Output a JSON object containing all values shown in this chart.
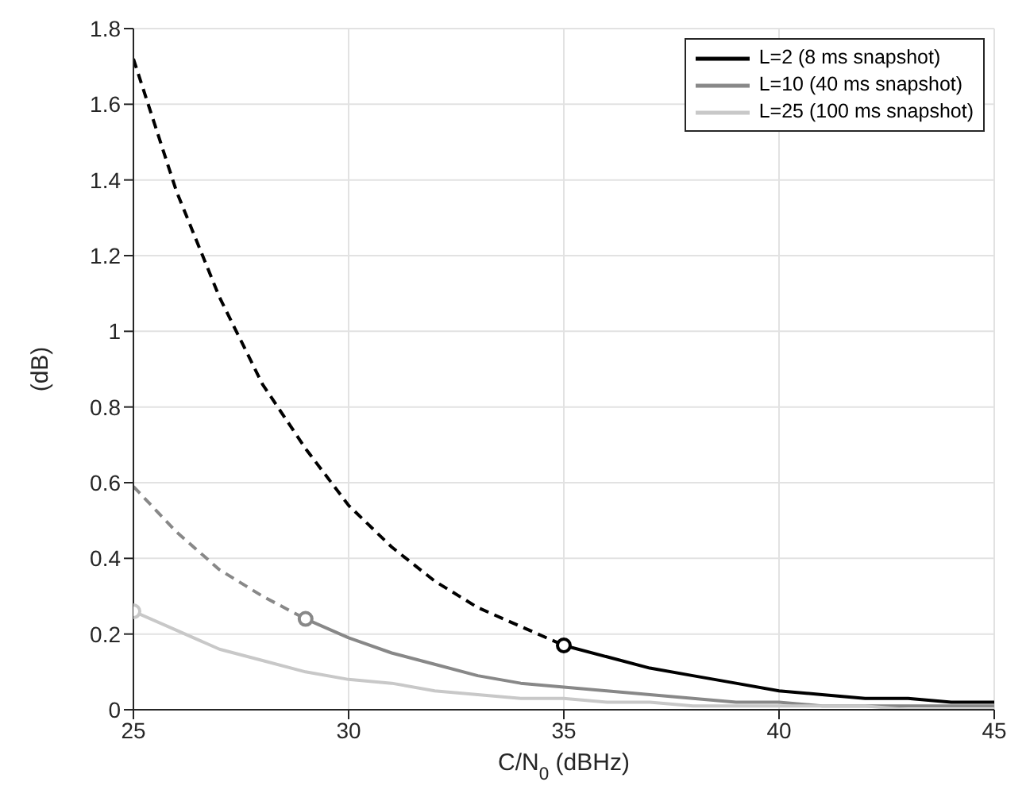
{
  "chart_data": {
    "type": "line",
    "xlabel": "C/N$_{0}$ (dBHz)",
    "ylabel": "(dB)",
    "xlim": [
      25,
      45
    ],
    "ylim": [
      0,
      1.8
    ],
    "xticks": [
      25,
      30,
      35,
      40,
      45
    ],
    "yticks": [
      0,
      0.2,
      0.4,
      0.6,
      0.8,
      1,
      1.2,
      1.4,
      1.6,
      1.8
    ],
    "grid": true,
    "legend": "top right",
    "marker": "none",
    "series": [
      {
        "name": "L=2 (8 ms snapshot)",
        "color": "#000000",
        "line_style": "solid",
        "x": [
          35,
          36,
          37,
          38,
          39,
          40,
          41,
          42,
          43,
          44,
          45
        ],
        "values": [
          0.17,
          0.14,
          0.11,
          0.09,
          0.07,
          0.05,
          0.04,
          0.03,
          0.03,
          0.02,
          0.02
        ]
      },
      {
        "name": "L=10 (40 ms snapshot)",
        "color": "#888888",
        "line_style": "solid",
        "x": [
          29,
          30,
          31,
          32,
          33,
          34,
          35,
          36,
          37,
          38,
          39,
          40,
          41,
          42,
          43,
          44,
          45
        ],
        "values": [
          0.24,
          0.19,
          0.15,
          0.12,
          0.09,
          0.07,
          0.06,
          0.05,
          0.04,
          0.03,
          0.02,
          0.02,
          0.01,
          0.01,
          0.01,
          0.01,
          0.01
        ]
      },
      {
        "name": "L=25 (100 ms snapshot)",
        "color": "#c8c8c8",
        "line_style": "solid",
        "x": [
          25,
          26,
          27,
          28,
          29,
          30,
          31,
          32,
          33,
          34,
          35,
          36,
          37,
          38,
          39,
          40,
          41,
          42,
          43,
          44,
          45
        ],
        "values": [
          0.26,
          0.21,
          0.16,
          0.13,
          0.1,
          0.08,
          0.07,
          0.05,
          0.04,
          0.03,
          0.03,
          0.02,
          0.02,
          0.01,
          0.01,
          0.01,
          0.01,
          0.01,
          0,
          0,
          0
        ]
      },
      {
        "color": "#000000",
        "line_style": "dashed",
        "x": [
          25,
          26,
          27,
          28,
          29,
          30,
          31,
          32,
          33,
          34,
          35
        ],
        "values": [
          1.72,
          1.37,
          1.09,
          0.86,
          0.69,
          0.54,
          0.43,
          0.34,
          0.27,
          0.22,
          0.17
        ]
      },
      {
        "color": "#888888",
        "line_style": "dashed",
        "x": [
          25,
          26,
          27,
          28,
          29
        ],
        "values": [
          0.59,
          0.47,
          0.37,
          0.3,
          0.24
        ]
      },
      {
        "type": "scatter",
        "marker": "circle",
        "x": [
          25,
          29,
          35
        ],
        "values": [
          0.26,
          0.24,
          0.17
        ],
        "colors": [
          "#c8c8c8",
          "#888888",
          "#000000"
        ]
      }
    ]
  }
}
